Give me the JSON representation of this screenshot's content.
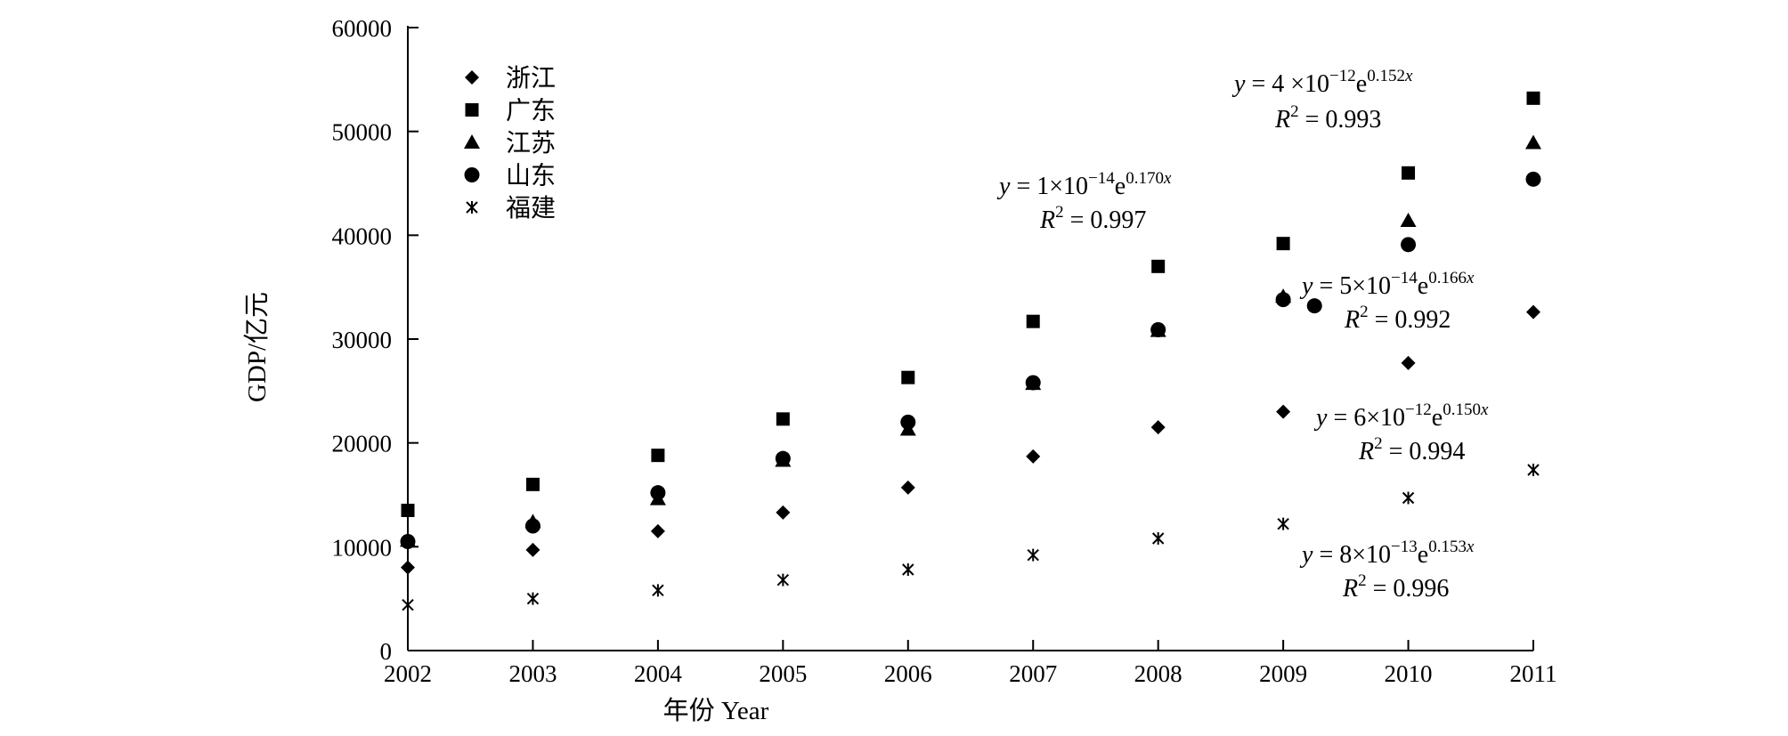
{
  "chart_data": {
    "type": "scatter",
    "title": "",
    "xlabel": "年份 Year",
    "ylabel": "GDP/亿元",
    "xlim": [
      2002,
      2011
    ],
    "ylim": [
      0,
      60000
    ],
    "x_ticks": [
      "2002",
      "2003",
      "2004",
      "2005",
      "2006",
      "2007",
      "2008",
      "2009",
      "2010",
      "2011"
    ],
    "y_ticks": [
      "0",
      "10000",
      "20000",
      "30000",
      "40000",
      "50000",
      "60000"
    ],
    "legend_position": "top-left",
    "series": [
      {
        "name": "浙江",
        "marker": "diamond",
        "x": [
          2002,
          2003,
          2004,
          2005,
          2006,
          2007,
          2008,
          2009,
          2010,
          2011
        ],
        "y": [
          8000,
          9700,
          11500,
          13300,
          15700,
          18700,
          21500,
          23000,
          27700,
          32600
        ],
        "trend": {
          "a": 6e-12,
          "b": 0.15
        },
        "equation": {
          "prefix": "y = 6×10",
          "exp": "−12",
          "mid": "e",
          "sup": "0.150x"
        },
        "r2": {
          "prefix": "R",
          "sup": "2",
          "rest": " = 0.994"
        }
      },
      {
        "name": "广东",
        "marker": "square",
        "x": [
          2002,
          2003,
          2004,
          2005,
          2006,
          2007,
          2008,
          2009,
          2010,
          2011
        ],
        "y": [
          13500,
          16000,
          18800,
          22300,
          26300,
          31700,
          37000,
          39200,
          46000,
          53200
        ],
        "trend": {
          "a": 4e-12,
          "b": 0.152
        },
        "equation": {
          "prefix": "y = 4 ×10",
          "exp": "−12",
          "mid": "e",
          "sup": "0.152x"
        },
        "r2": {
          "prefix": "R",
          "sup": "2",
          "rest": " = 0.993"
        }
      },
      {
        "name": "江苏",
        "marker": "triangle",
        "x": [
          2002,
          2003,
          2004,
          2005,
          2006,
          2007,
          2008,
          2009,
          2010,
          2011
        ],
        "y": [
          10600,
          12400,
          14600,
          18300,
          21300,
          25700,
          30800,
          34100,
          41400,
          48900
        ],
        "trend": {
          "a": 1e-14,
          "b": 0.17
        },
        "equation": {
          "prefix": "y = 1×10",
          "exp": "−14",
          "mid": "e",
          "sup": "0.170x"
        },
        "r2": {
          "prefix": "R",
          "sup": "2",
          "rest": " = 0.997"
        }
      },
      {
        "name": "山东",
        "marker": "circle",
        "x": [
          2002,
          2003,
          2004,
          2005,
          2006,
          2007,
          2008,
          2009,
          2009.25,
          2010,
          2011
        ],
        "y": [
          10500,
          12000,
          15200,
          18500,
          22000,
          25800,
          30900,
          33800,
          33200,
          39100,
          45400
        ],
        "trend": {
          "a": 5e-14,
          "b": 0.166
        },
        "equation": {
          "prefix": "y = 5×10",
          "exp": "−14",
          "mid": "e",
          "sup": "0.166x"
        },
        "r2": {
          "prefix": "R",
          "sup": "2",
          "rest": " = 0.992"
        }
      },
      {
        "name": "福建",
        "marker": "star",
        "x": [
          2002,
          2003,
          2004,
          2005,
          2006,
          2007,
          2008,
          2009,
          2010,
          2011
        ],
        "y": [
          4400,
          5000,
          5800,
          6800,
          7800,
          9200,
          10800,
          12200,
          14700,
          17400
        ],
        "trend": {
          "a": 8e-13,
          "b": 0.153
        },
        "equation": {
          "prefix": "y = 8×10",
          "exp": "−13",
          "mid": "e",
          "sup": "0.153x"
        },
        "r2": {
          "prefix": "R",
          "sup": "2",
          "rest": " = 0.996"
        }
      }
    ]
  }
}
